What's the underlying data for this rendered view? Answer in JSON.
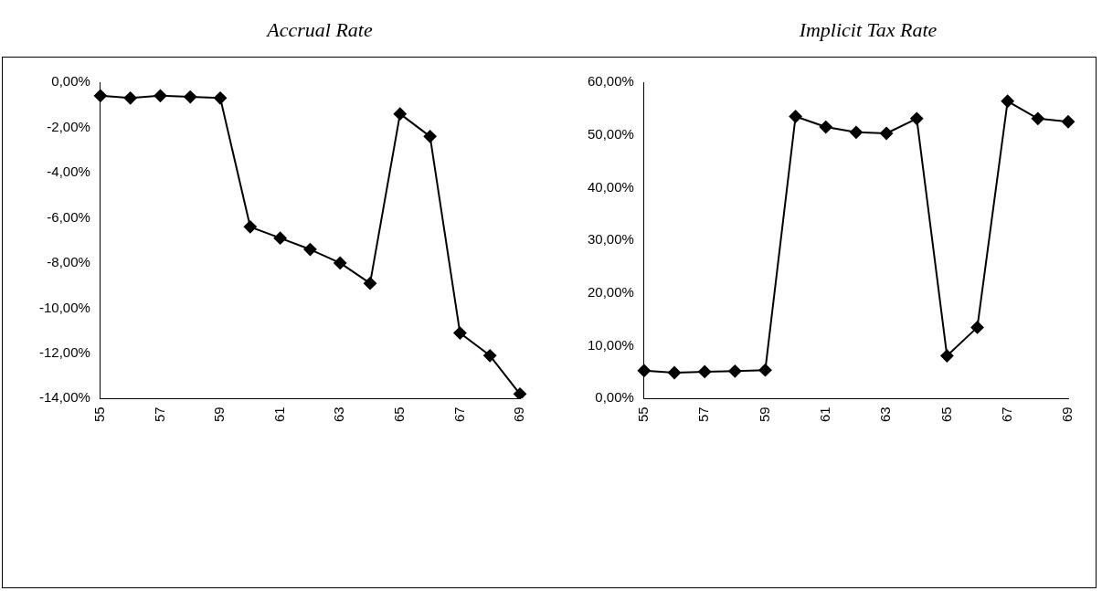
{
  "chart_data": [
    {
      "type": "line",
      "title": "Accrual Rate",
      "categories": [
        "55",
        null,
        "57",
        null,
        "59",
        null,
        "61",
        null,
        "63",
        null,
        "65",
        null,
        "67",
        null,
        "69"
      ],
      "series": [
        {
          "color": "#000000",
          "values": [
            -0.6,
            -0.7,
            -0.6,
            -0.65,
            -0.7,
            -6.4,
            -6.9,
            -7.4,
            -8.0,
            -8.9,
            -1.4,
            -2.4,
            -11.1,
            -12.1,
            -13.8
          ]
        }
      ],
      "ylim": [
        -14,
        0
      ],
      "yticks": [
        {
          "value": 0,
          "label": "0,00%"
        },
        {
          "value": -2,
          "label": "-2,00%"
        },
        {
          "value": -4,
          "label": "-4,00%"
        },
        {
          "value": -6,
          "label": "-6,00%"
        },
        {
          "value": -8,
          "label": "-8,00%"
        },
        {
          "value": -10,
          "label": "-10,00%"
        },
        {
          "value": -12,
          "label": "-12,00%"
        },
        {
          "value": -14,
          "label": "-14,00%"
        }
      ],
      "grid": false,
      "legend": false,
      "marker": "diamond",
      "line_style": "solid"
    },
    {
      "type": "line",
      "title": "Implicit Tax Rate",
      "categories": [
        "55",
        null,
        "57",
        null,
        "59",
        null,
        "61",
        null,
        "63",
        null,
        "65",
        null,
        "67",
        null,
        "69"
      ],
      "series": [
        {
          "color": "#000000",
          "values": [
            5.3,
            4.9,
            5.1,
            5.2,
            5.4,
            53.5,
            51.5,
            50.5,
            50.3,
            53.1,
            8.1,
            13.5,
            56.4,
            53.1,
            52.5
          ]
        }
      ],
      "ylim": [
        0,
        60
      ],
      "yticks": [
        {
          "value": 0,
          "label": "0,00%"
        },
        {
          "value": 10,
          "label": "10,00%"
        },
        {
          "value": 20,
          "label": "20,00%"
        },
        {
          "value": 30,
          "label": "30,00%"
        },
        {
          "value": 40,
          "label": "40,00%"
        },
        {
          "value": 50,
          "label": "50,00%"
        },
        {
          "value": 60,
          "label": "60,00%"
        }
      ],
      "grid": false,
      "legend": false,
      "marker": "diamond",
      "line_style": "solid"
    }
  ]
}
